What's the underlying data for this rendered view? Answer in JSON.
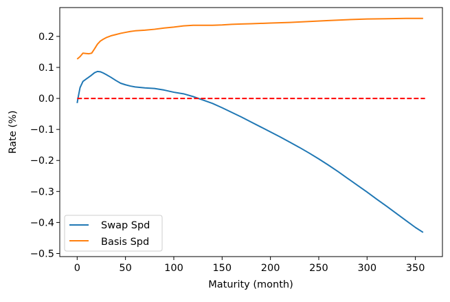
{
  "chart_data": {
    "type": "line",
    "title": "",
    "xlabel": "Maturity (month)",
    "ylabel": "Rate (%)",
    "xlim": [
      -18,
      378
    ],
    "ylim": [
      -0.51,
      0.293
    ],
    "xticks": [
      0,
      50,
      100,
      150,
      200,
      250,
      300,
      350
    ],
    "xtick_labels": [
      "0",
      "50",
      "100",
      "150",
      "200",
      "250",
      "300",
      "350"
    ],
    "yticks": [
      -0.5,
      -0.4,
      -0.3,
      -0.2,
      -0.1,
      0.0,
      0.1,
      0.2
    ],
    "ytick_labels": [
      "−0.5",
      "−0.4",
      "−0.3",
      "−0.2",
      "−0.1",
      "0.0",
      "0.1",
      "0.2"
    ],
    "grid": false,
    "legend_position": "lower-left",
    "series": [
      {
        "name": "Swap Spd",
        "color": "#1f77b4",
        "style": "solid",
        "x": [
          0,
          1,
          3,
          6,
          10,
          14,
          18,
          21,
          24,
          27,
          30,
          35,
          40,
          45,
          50,
          55,
          60,
          70,
          80,
          90,
          100,
          110,
          120,
          130,
          140,
          150,
          160,
          170,
          180,
          190,
          200,
          210,
          220,
          230,
          240,
          250,
          260,
          270,
          280,
          290,
          300,
          310,
          320,
          330,
          340,
          350,
          358
        ],
        "y": [
          -0.015,
          0.003,
          0.035,
          0.055,
          0.064,
          0.073,
          0.083,
          0.087,
          0.086,
          0.082,
          0.077,
          0.068,
          0.058,
          0.049,
          0.044,
          0.04,
          0.037,
          0.034,
          0.032,
          0.027,
          0.02,
          0.015,
          0.006,
          -0.005,
          -0.016,
          -0.03,
          -0.045,
          -0.06,
          -0.076,
          -0.092,
          -0.108,
          -0.124,
          -0.141,
          -0.158,
          -0.176,
          -0.195,
          -0.215,
          -0.236,
          -0.258,
          -0.28,
          -0.302,
          -0.325,
          -0.347,
          -0.37,
          -0.393,
          -0.416,
          -0.432
        ]
      },
      {
        "name": "Basis Spd",
        "color": "#ff7f0e",
        "style": "solid",
        "x": [
          0,
          3,
          6,
          9,
          12,
          15,
          18,
          21,
          24,
          27,
          30,
          35,
          40,
          45,
          50,
          55,
          60,
          70,
          80,
          90,
          100,
          110,
          120,
          130,
          140,
          150,
          160,
          170,
          180,
          200,
          220,
          240,
          260,
          280,
          300,
          320,
          340,
          358
        ],
        "y": [
          0.127,
          0.135,
          0.146,
          0.145,
          0.144,
          0.146,
          0.16,
          0.175,
          0.185,
          0.191,
          0.196,
          0.202,
          0.206,
          0.21,
          0.213,
          0.216,
          0.218,
          0.22,
          0.223,
          0.227,
          0.23,
          0.234,
          0.236,
          0.236,
          0.236,
          0.237,
          0.239,
          0.24,
          0.241,
          0.243,
          0.245,
          0.248,
          0.251,
          0.254,
          0.256,
          0.257,
          0.258,
          0.258
        ]
      },
      {
        "name": "",
        "color": "#ff0000",
        "style": "dashed",
        "x": [
          0,
          360
        ],
        "y": [
          0.0,
          0.0
        ]
      }
    ]
  }
}
